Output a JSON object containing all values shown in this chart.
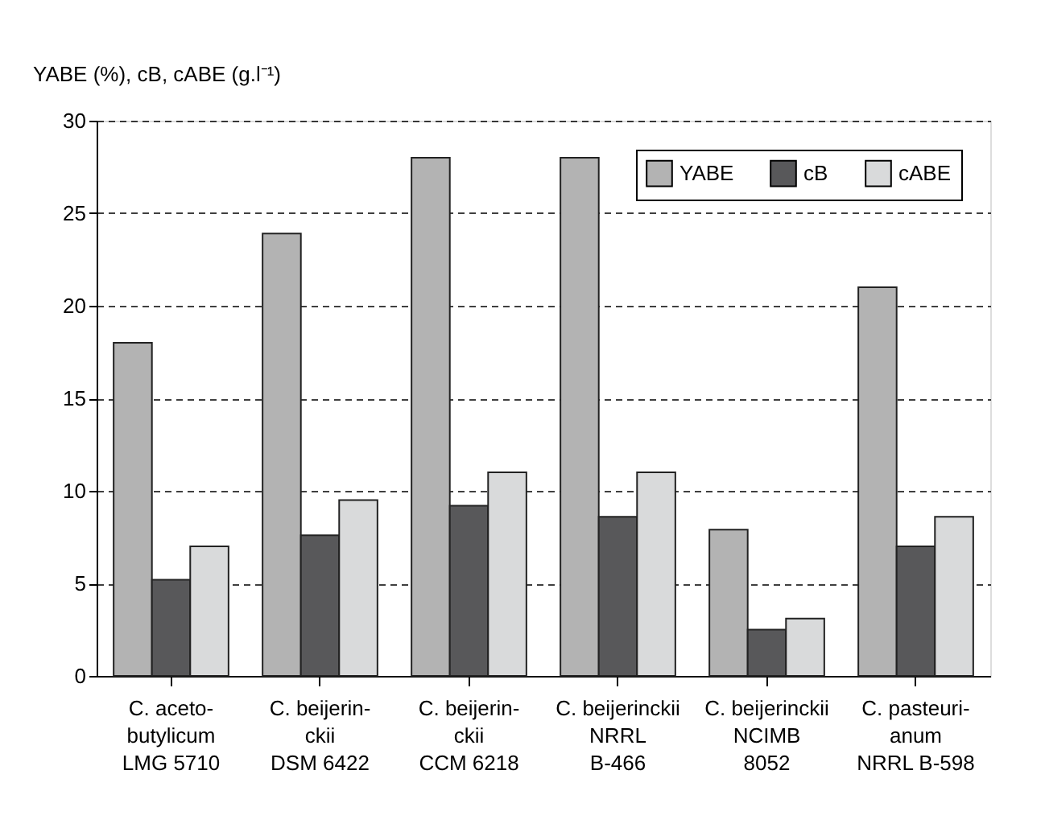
{
  "chart_data": {
    "type": "bar",
    "ylabel": "YABE (%), cB, cABE (g.l⁻¹)",
    "categories": [
      "C. aceto-\nbutylicum\nLMG 5710",
      "C. beijerin-\nckii\nDSM 6422",
      "C. beijerin-\nckii\nCCM 6218",
      "C. beijerinckii\nNRRL\nB-466",
      "C. beijerinckii\nNCIMB\n8052",
      "C. pasteuri-\nanum\nNRRL B-598"
    ],
    "series": [
      {
        "name": "YABE",
        "color": "#b3b3b3",
        "values": [
          18,
          23.9,
          28,
          28,
          7.9,
          21
        ]
      },
      {
        "name": "cB",
        "color": "#58585a",
        "values": [
          5.2,
          7.6,
          9.2,
          8.6,
          2.5,
          7.0
        ]
      },
      {
        "name": "cABE",
        "color": "#d9dadb",
        "values": [
          7.0,
          9.5,
          11,
          11,
          3.1,
          8.6
        ]
      }
    ],
    "ylim": [
      0,
      30
    ],
    "yticks": [
      0,
      5,
      10,
      15,
      20,
      25,
      30
    ],
    "grid": "y",
    "legend": "top right"
  }
}
